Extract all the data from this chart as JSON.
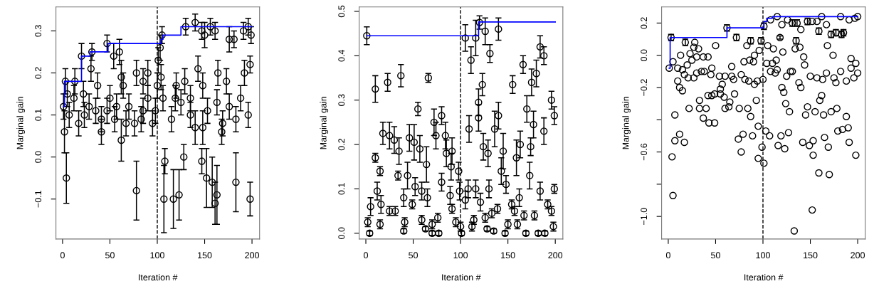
{
  "chart_data": [
    {
      "type": "scatter",
      "xlabel": "Iteration #",
      "ylabel": "Marginal gain",
      "xlim": [
        -7,
        208
      ],
      "xticks": [
        0,
        50,
        100,
        150,
        200
      ],
      "ylim": [
        -0.195,
        0.357
      ],
      "yticks": [
        {
          "value": -0.1,
          "label": "−0.1"
        },
        {
          "value": 0.0,
          "label": "0.0"
        },
        {
          "value": 0.1,
          "label": "0.1"
        },
        {
          "value": 0.2,
          "label": "0.2"
        },
        {
          "value": 0.3,
          "label": "0.3"
        }
      ],
      "grid": false,
      "marker": "circle",
      "legend": false,
      "ref_lines": [
        {
          "axis": "x",
          "value": 100,
          "color": "#000000",
          "line_style": "dashed"
        }
      ],
      "series": [
        {
          "color": "#000000",
          "x": [
            1,
            2,
            4,
            3,
            13,
            20,
            30,
            31,
            47,
            54,
            60,
            62,
            62,
            78,
            78,
            90,
            85,
            101,
            103,
            105,
            108,
            107,
            117,
            123,
            128,
            130,
            140,
            147,
            150,
            156,
            161,
            147,
            152,
            158,
            163,
            161,
            176,
            181,
            191,
            196,
            199,
            198,
            198,
            183,
            192,
            164,
            173,
            143,
            120,
            119,
            115,
            129,
            135,
            140,
            148,
            148,
            125,
            106,
            104,
            100,
            98,
            90,
            83,
            76,
            70,
            64,
            57,
            50,
            41,
            41,
            35,
            37,
            28,
            23,
            17,
            12,
            7,
            5,
            22,
            47,
            55,
            67,
            85,
            95,
            153,
            163,
            169,
            176,
            183,
            188,
            196,
            168,
            135
          ],
          "values": [
            0.12,
            0.06,
            -0.05,
            0.18,
            0.18,
            0.24,
            0.21,
            0.25,
            0.27,
            0.24,
            0.25,
            0.19,
            0.04,
            -0.08,
            0.2,
            0.2,
            0.18,
            0.23,
            0.26,
            0.29,
            -0.01,
            -0.1,
            -0.1,
            -0.09,
            0.0,
            0.31,
            0.32,
            0.3,
            0.29,
            0.31,
            0.3,
            -0.01,
            -0.05,
            -0.06,
            -0.09,
            -0.11,
            0.28,
            0.28,
            0.3,
            0.31,
            0.29,
            0.22,
            -0.1,
            -0.06,
            0.2,
            0.2,
            0.18,
            0.21,
            0.17,
            0.14,
            0.09,
            0.18,
            0.1,
            0.07,
            0.07,
            0.17,
            0.13,
            0.14,
            0.19,
            0.17,
            0.11,
            0.14,
            0.09,
            0.08,
            0.12,
            0.17,
            0.12,
            0.14,
            0.06,
            0.09,
            0.11,
            0.17,
            0.12,
            0.1,
            0.08,
            0.14,
            0.1,
            0.15,
            0.15,
            0.11,
            0.09,
            0.08,
            0.11,
            0.08,
            0.11,
            0.13,
            0.08,
            0.12,
            0.09,
            0.14,
            0.1,
            0.06,
            0.14
          ],
          "errors": [
            0.03,
            0.05,
            0.06,
            0.03,
            0.03,
            0.03,
            0.03,
            0.02,
            0.02,
            0.03,
            0.03,
            0.04,
            0.05,
            0.07,
            0.03,
            0.03,
            0.03,
            0.03,
            0.03,
            0.02,
            0.03,
            0.08,
            0.07,
            0.06,
            0.03,
            0.02,
            0.02,
            0.02,
            0.03,
            0.02,
            0.02,
            0.03,
            0.07,
            0.06,
            0.07,
            0.05,
            0.03,
            0.02,
            0.02,
            0.02,
            0.02,
            0.02,
            0.04,
            0.07,
            0.03,
            0.03,
            0.03,
            0.03,
            0.03,
            0.03,
            0.03,
            0.03,
            0.03,
            0.04,
            0.04,
            0.03,
            0.03,
            0.03,
            0.03,
            0.03,
            0.03,
            0.03,
            0.03,
            0.03,
            0.03,
            0.03,
            0.03,
            0.03,
            0.03,
            0.03,
            0.03,
            0.03,
            0.03,
            0.03,
            0.03,
            0.03,
            0.03,
            0.03,
            0.03,
            0.03,
            0.03,
            0.03,
            0.03,
            0.03,
            0.03,
            0.03,
            0.03,
            0.03,
            0.03,
            0.03,
            0.03,
            0.03,
            0.03
          ]
        },
        {
          "type": "step",
          "marker": "none",
          "color": "#0000ff",
          "x": [
            1,
            2,
            12,
            20,
            29,
            48,
            104,
            106,
            125,
            134,
            200
          ],
          "values": [
            0.12,
            0.18,
            0.18,
            0.24,
            0.25,
            0.27,
            0.28,
            0.29,
            0.31,
            0.31,
            0.31
          ]
        }
      ]
    },
    {
      "type": "scatter",
      "xlabel": "Iteration #",
      "ylabel": "Marginal gain",
      "xlim": [
        -7,
        208
      ],
      "xticks": [
        0,
        50,
        100,
        150,
        200
      ],
      "ylim": [
        -0.013,
        0.51
      ],
      "yticks": [
        {
          "value": 0.0,
          "label": "0.0"
        },
        0.1,
        0.2,
        0.3,
        0.4,
        0.5
      ],
      "grid": false,
      "marker": "circle",
      "legend": false,
      "ref_lines": [
        {
          "axis": "x",
          "value": 100,
          "color": "#000000",
          "line_style": "dashed"
        }
      ],
      "series": [
        {
          "color": "#000000",
          "x": [
            1,
            10,
            23,
            37,
            66,
            55,
            105,
            111,
            116,
            120,
            126,
            131,
            140,
            123,
            119,
            119,
            109,
            155,
            166,
            175,
            180,
            184,
            188,
            196,
            199,
            188,
            170,
            177,
            140,
            136,
            129,
            124,
            145,
            163,
            159,
            174,
            10,
            18,
            25,
            30,
            35,
            46,
            51,
            57,
            64,
            72,
            74,
            80,
            84,
            85,
            91,
            90,
            98,
            15,
            12,
            16,
            5,
            2,
            4,
            15,
            25,
            31,
            34,
            40,
            41,
            40,
            44,
            49,
            52,
            59,
            59,
            63,
            65,
            70,
            70,
            76,
            77,
            80,
            89,
            91,
            95,
            99,
            100,
            101,
            105,
            108,
            112,
            114,
            116,
            121,
            126,
            128,
            130,
            133,
            135,
            139,
            143,
            147,
            148,
            150,
            154,
            157,
            160,
            162,
            167,
            169,
            173,
            178,
            182,
            184,
            189,
            192,
            196,
            198,
            199
          ],
          "values": [
            0.445,
            0.325,
            0.34,
            0.355,
            0.35,
            0.28,
            0.44,
            0.39,
            0.44,
            0.475,
            0.455,
            0.405,
            0.46,
            0.335,
            0.295,
            0.26,
            0.235,
            0.335,
            0.38,
            0.34,
            0.36,
            0.42,
            0.4,
            0.3,
            0.265,
            0.23,
            0.28,
            0.245,
            0.265,
            0.235,
            0.18,
            0.195,
            0.185,
            0.2,
            0.17,
            0.195,
            0.17,
            0.225,
            0.22,
            0.21,
            0.185,
            0.215,
            0.205,
            0.19,
            0.155,
            0.25,
            0.22,
            0.265,
            0.22,
            0.18,
            0.185,
            0.15,
            0.14,
            0.14,
            0.095,
            0.065,
            0.06,
            0.025,
            0.0,
            0.02,
            0.05,
            0.05,
            0.13,
            0.08,
            0.025,
            0.005,
            0.13,
            0.065,
            0.105,
            0.095,
            0.03,
            0.01,
            0.08,
            0.02,
            0.0,
            0.035,
            0.0,
            0.115,
            0.085,
            0.055,
            0.025,
            0.095,
            0.015,
            0.0,
            0.075,
            0.1,
            0.015,
            0.03,
            0.1,
            0.07,
            0.035,
            0.01,
            0.1,
            0.045,
            0.005,
            0.055,
            0.14,
            0.0,
            0.11,
            0.02,
            0.065,
            0.05,
            0.02,
            0.08,
            0.04,
            0.0,
            0.13,
            0.04,
            0.0,
            0.095,
            0.0,
            0.065,
            0.05,
            0.015,
            0.1
          ],
          "errors": [
            0.02,
            0.03,
            0.02,
            0.025,
            0.01,
            0.015,
            0.03,
            0.03,
            0.04,
            0.015,
            0.03,
            0.02,
            0.025,
            0.025,
            0.03,
            0.03,
            0.03,
            0.02,
            0.02,
            0.03,
            0.03,
            0.025,
            0.02,
            0.02,
            0.02,
            0.03,
            0.03,
            0.03,
            0.03,
            0.04,
            0.03,
            0.03,
            0.04,
            0.03,
            0.04,
            0.02,
            0.01,
            0.025,
            0.03,
            0.03,
            0.03,
            0.03,
            0.04,
            0.03,
            0.04,
            0.03,
            0.03,
            0.02,
            0.03,
            0.03,
            0.03,
            0.03,
            0.02,
            0.01,
            0.02,
            0.02,
            0.02,
            0.01,
            0.005,
            0.01,
            0.01,
            0.01,
            0.01,
            0.02,
            0.01,
            0.005,
            0.03,
            0.01,
            0.02,
            0.02,
            0.01,
            0.005,
            0.02,
            0.01,
            0.005,
            0.01,
            0.005,
            0.02,
            0.02,
            0.01,
            0.01,
            0.02,
            0.01,
            0.005,
            0.02,
            0.02,
            0.01,
            0.01,
            0.02,
            0.02,
            0.01,
            0.005,
            0.02,
            0.01,
            0.005,
            0.01,
            0.03,
            0.005,
            0.02,
            0.01,
            0.01,
            0.01,
            0.01,
            0.02,
            0.01,
            0.005,
            0.03,
            0.01,
            0.005,
            0.02,
            0.005,
            0.01,
            0.01,
            0.01,
            0.01
          ]
        },
        {
          "type": "step",
          "marker": "none",
          "color": "#0000ff",
          "x": [
            1,
            119,
            200
          ],
          "values": [
            0.445,
            0.476,
            0.476
          ]
        }
      ]
    },
    {
      "type": "scatter",
      "xlabel": "Iteration #",
      "ylabel": "Marginal gain",
      "xlim": [
        -7,
        208
      ],
      "xticks": [
        0,
        50,
        100,
        150,
        200
      ],
      "ylim": [
        -1.14,
        0.3
      ],
      "yticks": [
        {
          "value": -1.0,
          "label": "−1.0"
        },
        {
          "value": -0.8,
          "label": null
        },
        {
          "value": -0.6,
          "label": "−0.6"
        },
        {
          "value": -0.4,
          "label": null
        },
        {
          "value": -0.2,
          "label": "−0.2"
        },
        {
          "value": 0.0,
          "label": "0.0"
        },
        {
          "value": 0.2,
          "label": "0.2"
        }
      ],
      "grid": false,
      "marker": "circle",
      "legend": false,
      "ref_lines": [
        {
          "axis": "x",
          "value": 100,
          "color": "#000000",
          "line_style": "dashed"
        }
      ],
      "series": [
        {
          "color": "#000000",
          "x": [
            1,
            3,
            18,
            28,
            50,
            62,
            72,
            87,
            98,
            101,
            108,
            115,
            120,
            126,
            131,
            136,
            140,
            147,
            152,
            157,
            159,
            162,
            167,
            168,
            172,
            177,
            183,
            185,
            182,
            191,
            197,
            200,
            118,
            135,
            134,
            139,
            143,
            144,
            111,
            105,
            96,
            91,
            83,
            80,
            86,
            90,
            104,
            110,
            114,
            108,
            115,
            113,
            174,
            193,
            198,
            182,
            193,
            200,
            196,
            188,
            177,
            175,
            167,
            163,
            157,
            150,
            129,
            131,
            125,
            138,
            140,
            120,
            122,
            124,
            128,
            162,
            160,
            147,
            145,
            155,
            164,
            172,
            178,
            188,
            179,
            184,
            190,
            165,
            169,
            153,
            149,
            142,
            153,
            191,
            198,
            159,
            170,
            152,
            133,
            127,
            119,
            116,
            123,
            107,
            103,
            95,
            99,
            101,
            95,
            89,
            79,
            74,
            77,
            87,
            93,
            84,
            75,
            70,
            65,
            60,
            64,
            59,
            55,
            55,
            57,
            54,
            60,
            67,
            69,
            77,
            81,
            85,
            91,
            94,
            100,
            67,
            49,
            46,
            42,
            40,
            33,
            22,
            33,
            37,
            43,
            49,
            46,
            45,
            38,
            35,
            30,
            27,
            21,
            17,
            15,
            10,
            5,
            13,
            20,
            25,
            30,
            37,
            42,
            27,
            32,
            23,
            10,
            12,
            15,
            7,
            12,
            7,
            17,
            4,
            5,
            121
          ],
          "values": [
            -0.08,
            0.11,
            0.08,
            0.08,
            0.06,
            0.17,
            0.11,
            0.09,
            0.09,
            0.18,
            0.22,
            0.24,
            0.19,
            0.22,
            0.2,
            0.2,
            0.16,
            0.21,
            0.21,
            0.21,
            0.15,
            0.24,
            0.19,
            0.06,
            0.13,
            0.14,
            0.13,
            0.14,
            0.24,
            0.22,
            0.23,
            0.24,
            0.11,
            0.09,
            0.04,
            0.05,
            -0.01,
            -0.06,
            0.04,
            0.06,
            0.03,
            0.0,
            0.06,
            -0.04,
            -0.03,
            -0.04,
            -0.05,
            -0.05,
            -0.03,
            -0.1,
            -0.09,
            -0.11,
            0.0,
            -0.02,
            -0.05,
            -0.1,
            -0.08,
            -0.11,
            -0.14,
            -0.16,
            -0.17,
            -0.14,
            -0.11,
            -0.15,
            -0.14,
            -0.13,
            -0.1,
            -0.1,
            -0.13,
            -0.17,
            -0.2,
            -0.2,
            -0.23,
            -0.3,
            -0.35,
            -0.25,
            -0.28,
            -0.32,
            -0.37,
            -0.35,
            -0.37,
            -0.35,
            -0.33,
            -0.38,
            -0.47,
            -0.46,
            -0.45,
            -0.51,
            -0.57,
            -0.53,
            -0.56,
            -0.54,
            -0.62,
            -0.54,
            -0.62,
            -0.73,
            -0.74,
            -0.96,
            -1.09,
            -0.48,
            -0.5,
            -0.56,
            -0.58,
            -0.5,
            -0.47,
            -0.44,
            -0.57,
            -0.67,
            -0.64,
            -0.5,
            -0.49,
            -0.52,
            -0.6,
            -0.38,
            -0.28,
            -0.33,
            -0.33,
            -0.24,
            -0.29,
            -0.33,
            -0.32,
            -0.26,
            -0.24,
            -0.21,
            -0.18,
            -0.13,
            -0.13,
            -0.13,
            -0.15,
            -0.12,
            -0.15,
            -0.16,
            -0.18,
            -0.16,
            -0.15,
            -0.07,
            -0.24,
            -0.25,
            -0.25,
            -0.33,
            -0.33,
            -0.33,
            -0.28,
            -0.39,
            -0.42,
            -0.42,
            -0.08,
            -0.12,
            -0.1,
            -0.1,
            -0.11,
            -0.14,
            -0.14,
            -0.12,
            -0.09,
            -0.08,
            -0.04,
            0.0,
            -0.06,
            -0.03,
            -0.01,
            -0.01,
            -0.01,
            0.05,
            0.04,
            0.01,
            -0.16,
            -0.2,
            -0.22,
            -0.37,
            -0.49,
            -0.53,
            -0.54,
            -0.63,
            -0.87,
            0.02
          ],
          "errors": [
            null,
            0.02,
            0.02,
            null,
            null,
            0.02,
            0.02,
            0.02,
            0.02,
            0.02,
            null,
            null,
            null,
            null,
            0.02,
            0.02,
            null,
            0.02,
            null,
            null,
            0.02,
            null,
            null,
            null,
            0.02,
            0.02,
            0.02,
            0.02,
            null,
            null,
            null,
            null,
            0.01,
            0.02,
            null,
            null,
            null,
            null,
            null,
            null,
            null,
            null,
            null,
            null,
            null,
            null,
            null,
            null,
            null,
            null,
            null,
            null,
            null,
            null,
            null,
            null,
            null,
            null,
            null,
            null,
            null,
            null,
            null,
            null,
            null,
            null,
            null,
            null,
            null,
            null,
            null,
            null,
            null,
            null,
            null,
            null,
            null,
            null,
            null,
            null,
            null,
            null,
            null,
            null,
            null,
            null,
            null,
            null,
            null,
            null,
            null,
            null,
            null,
            null,
            null,
            null,
            null,
            null,
            null,
            null,
            null,
            null,
            null,
            null,
            null,
            null,
            null,
            null,
            null,
            null,
            null,
            null,
            null,
            null,
            null,
            null,
            null,
            null,
            null,
            null,
            null,
            null,
            null,
            null,
            null,
            null,
            null,
            null,
            null,
            null,
            null,
            null,
            null,
            null,
            null,
            null,
            null,
            null,
            null,
            null,
            null,
            null,
            null,
            null,
            null,
            null,
            null,
            null,
            null,
            null,
            null,
            null,
            null,
            null,
            null,
            null,
            null,
            null,
            null,
            null,
            null,
            null,
            null,
            null,
            null,
            null,
            null,
            null,
            null,
            null,
            null,
            null,
            null,
            null,
            null,
            null
          ]
        },
        {
          "type": "step",
          "marker": "none",
          "color": "#0000ff",
          "x": [
            1,
            2,
            62,
            101,
            104,
            110,
            200
          ],
          "values": [
            -0.08,
            0.11,
            0.17,
            0.21,
            0.23,
            0.24,
            0.24
          ]
        }
      ]
    }
  ]
}
